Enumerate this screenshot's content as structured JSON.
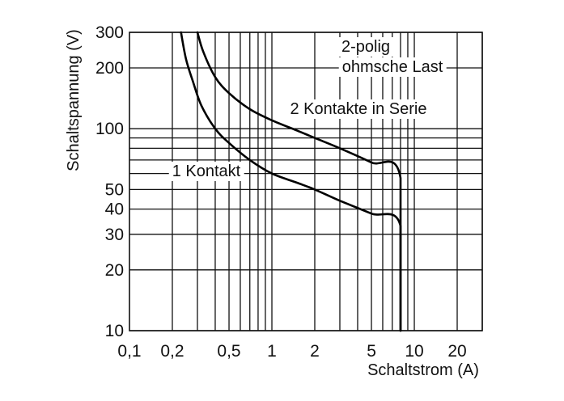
{
  "chart_data": {
    "type": "line",
    "xlabel": "Schaltstrom (A)",
    "ylabel": "Schaltspannung (V)",
    "x_scale": "log",
    "y_scale": "log",
    "xlim": [
      0.1,
      30
    ],
    "ylim": [
      10,
      300
    ],
    "x_tick_labels": [
      {
        "value": 0.1,
        "label": "0,1"
      },
      {
        "value": 0.2,
        "label": "0,2"
      },
      {
        "value": 0.5,
        "label": "0,5"
      },
      {
        "value": 1,
        "label": "1"
      },
      {
        "value": 2,
        "label": "2"
      },
      {
        "value": 5,
        "label": "5"
      },
      {
        "value": 10,
        "label": "10"
      },
      {
        "value": 20,
        "label": "20"
      }
    ],
    "y_tick_labels": [
      {
        "value": 10,
        "label": "10"
      },
      {
        "value": 20,
        "label": "20"
      },
      {
        "value": 30,
        "label": "30"
      },
      {
        "value": 40,
        "label": "40"
      },
      {
        "value": 50,
        "label": "50"
      },
      {
        "value": 100,
        "label": "100"
      },
      {
        "value": 200,
        "label": "200"
      },
      {
        "value": 300,
        "label": "300"
      }
    ],
    "x_gridlines": [
      0.2,
      0.3,
      0.4,
      0.5,
      0.6,
      0.7,
      0.8,
      0.9,
      1,
      2,
      3,
      4,
      5,
      6,
      7,
      8,
      9,
      10,
      20,
      30
    ],
    "y_gridlines": [
      10,
      20,
      30,
      40,
      50,
      60,
      70,
      80,
      90,
      100,
      200,
      300
    ],
    "grid": true,
    "annotation": "2-polig\nohmsche Last",
    "series": [
      {
        "name": "1 Kontakt",
        "x": [
          0.23,
          0.25,
          0.28,
          0.32,
          0.4,
          0.5,
          0.7,
          1.0,
          1.5,
          2.0,
          3.0,
          5.0,
          8.0,
          8.0
        ],
        "y": [
          300,
          220,
          170,
          130,
          100,
          85,
          70,
          60,
          54,
          50,
          44,
          38,
          33,
          10
        ]
      },
      {
        "name": "2 Kontakte in Serie",
        "x": [
          0.3,
          0.33,
          0.4,
          0.5,
          0.7,
          1.0,
          1.5,
          2.0,
          3.0,
          5.0,
          8.0,
          8.0
        ],
        "y": [
          300,
          240,
          180,
          150,
          125,
          110,
          98,
          90,
          80,
          68,
          57,
          10
        ]
      }
    ]
  }
}
